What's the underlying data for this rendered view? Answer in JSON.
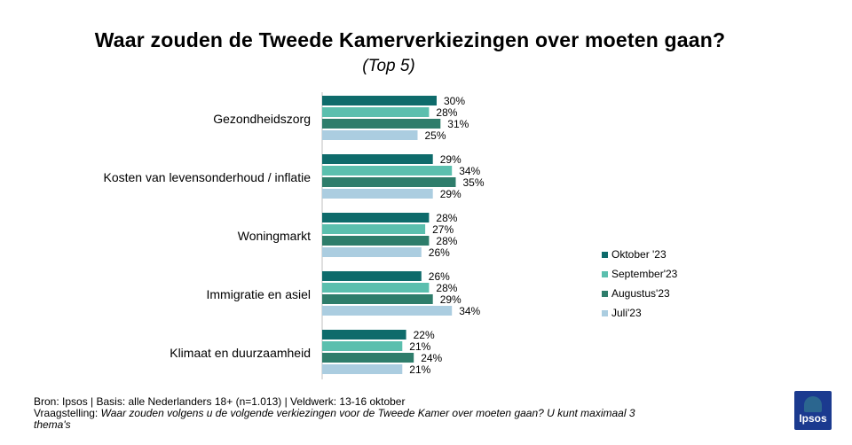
{
  "title": "Waar zouden de Tweede Kamerverkiezingen over moeten gaan?",
  "subtitle": "(Top 5)",
  "chart_data": {
    "type": "bar",
    "orientation": "horizontal",
    "categories": [
      "Gezondheidszorg",
      "Kosten van levensonderhoud / inflatie",
      "Woningmarkt",
      "Immigratie en asiel",
      "Klimaat en duurzaamheid"
    ],
    "series": [
      {
        "name": "Oktober '23",
        "color": "#0e6b6b",
        "values": [
          30,
          29,
          28,
          26,
          22
        ]
      },
      {
        "name": "September'23",
        "color": "#5bbfae",
        "values": [
          28,
          34,
          27,
          28,
          21
        ]
      },
      {
        "name": "Augustus'23",
        "color": "#2e7d6b",
        "values": [
          31,
          35,
          28,
          29,
          24
        ]
      },
      {
        "name": "Juli'23",
        "color": "#abcde0",
        "values": [
          25,
          29,
          26,
          34,
          21
        ]
      }
    ],
    "value_suffix": "%",
    "xlim": [
      0,
      35
    ],
    "grid": false,
    "legend_position": "right"
  },
  "footer": {
    "line1": "Bron: Ipsos | Basis: alle Nederlanders 18+ (n=1.013) | Veldwerk: 13-16 oktober",
    "question_prefix": "Vraagstelling: ",
    "question": "Waar zouden volgens u de volgende verkiezingen voor de Tweede Kamer over moeten gaan? U kunt maximaal 3 thema's"
  },
  "logo": {
    "text": "Ipsos",
    "color": "#1b3a8f"
  }
}
